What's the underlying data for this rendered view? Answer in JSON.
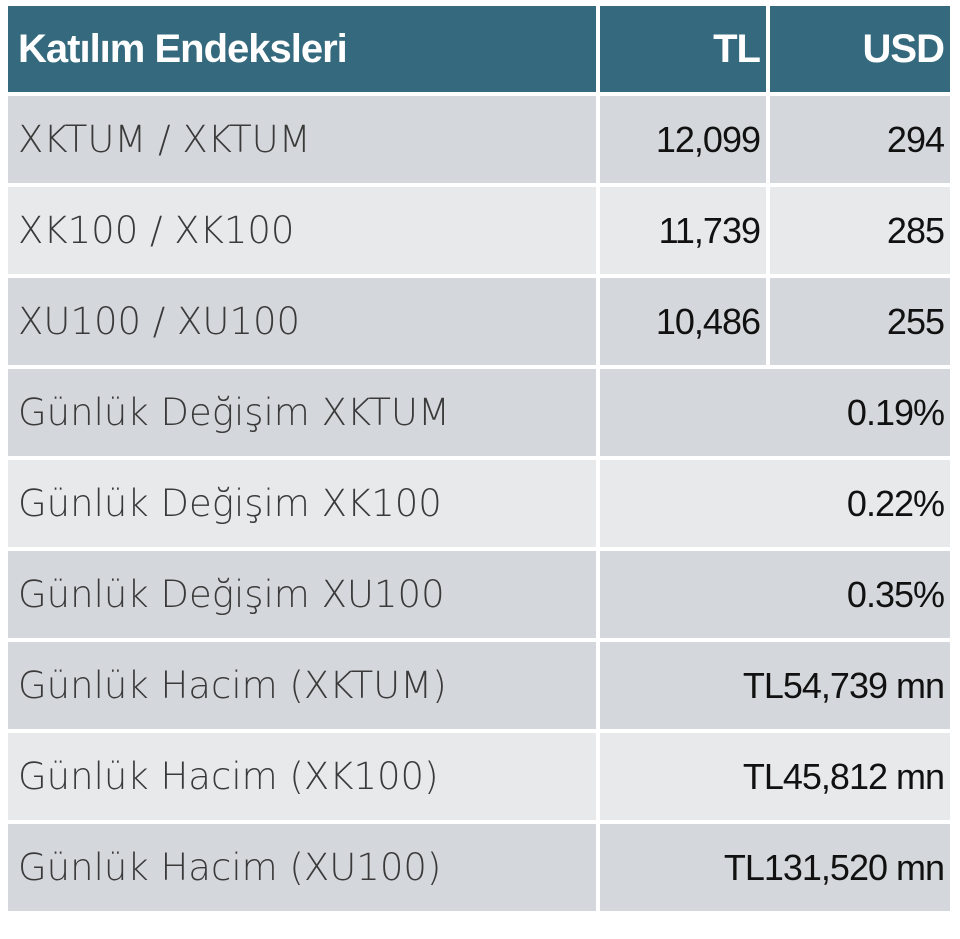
{
  "header": {
    "title": "Katılım Endeksleri",
    "col_tl": "TL",
    "col_usd": "USD"
  },
  "index_rows": [
    {
      "label": "XKTUM / XKTUM",
      "tl": "12,099",
      "usd": "294"
    },
    {
      "label": "XK100 / XK100",
      "tl": "11,739",
      "usd": "285"
    },
    {
      "label": "XU100 / XU100",
      "tl": "10,486",
      "usd": "255"
    }
  ],
  "stat_rows": [
    {
      "label": "Günlük Değişim XKTUM",
      "value": "0.19%"
    },
    {
      "label": "Günlük Değişim XK100",
      "value": "0.22%"
    },
    {
      "label": "Günlük Değişim XU100",
      "value": "0.35%"
    },
    {
      "label": "Günlük Hacim (XKTUM)",
      "value": "TL54,739 mn"
    },
    {
      "label": "Günlük Hacim (XK100)",
      "value": "TL45,812 mn"
    },
    {
      "label": "Günlük Hacim (XU100)",
      "value": "TL131,520 mn"
    }
  ]
}
